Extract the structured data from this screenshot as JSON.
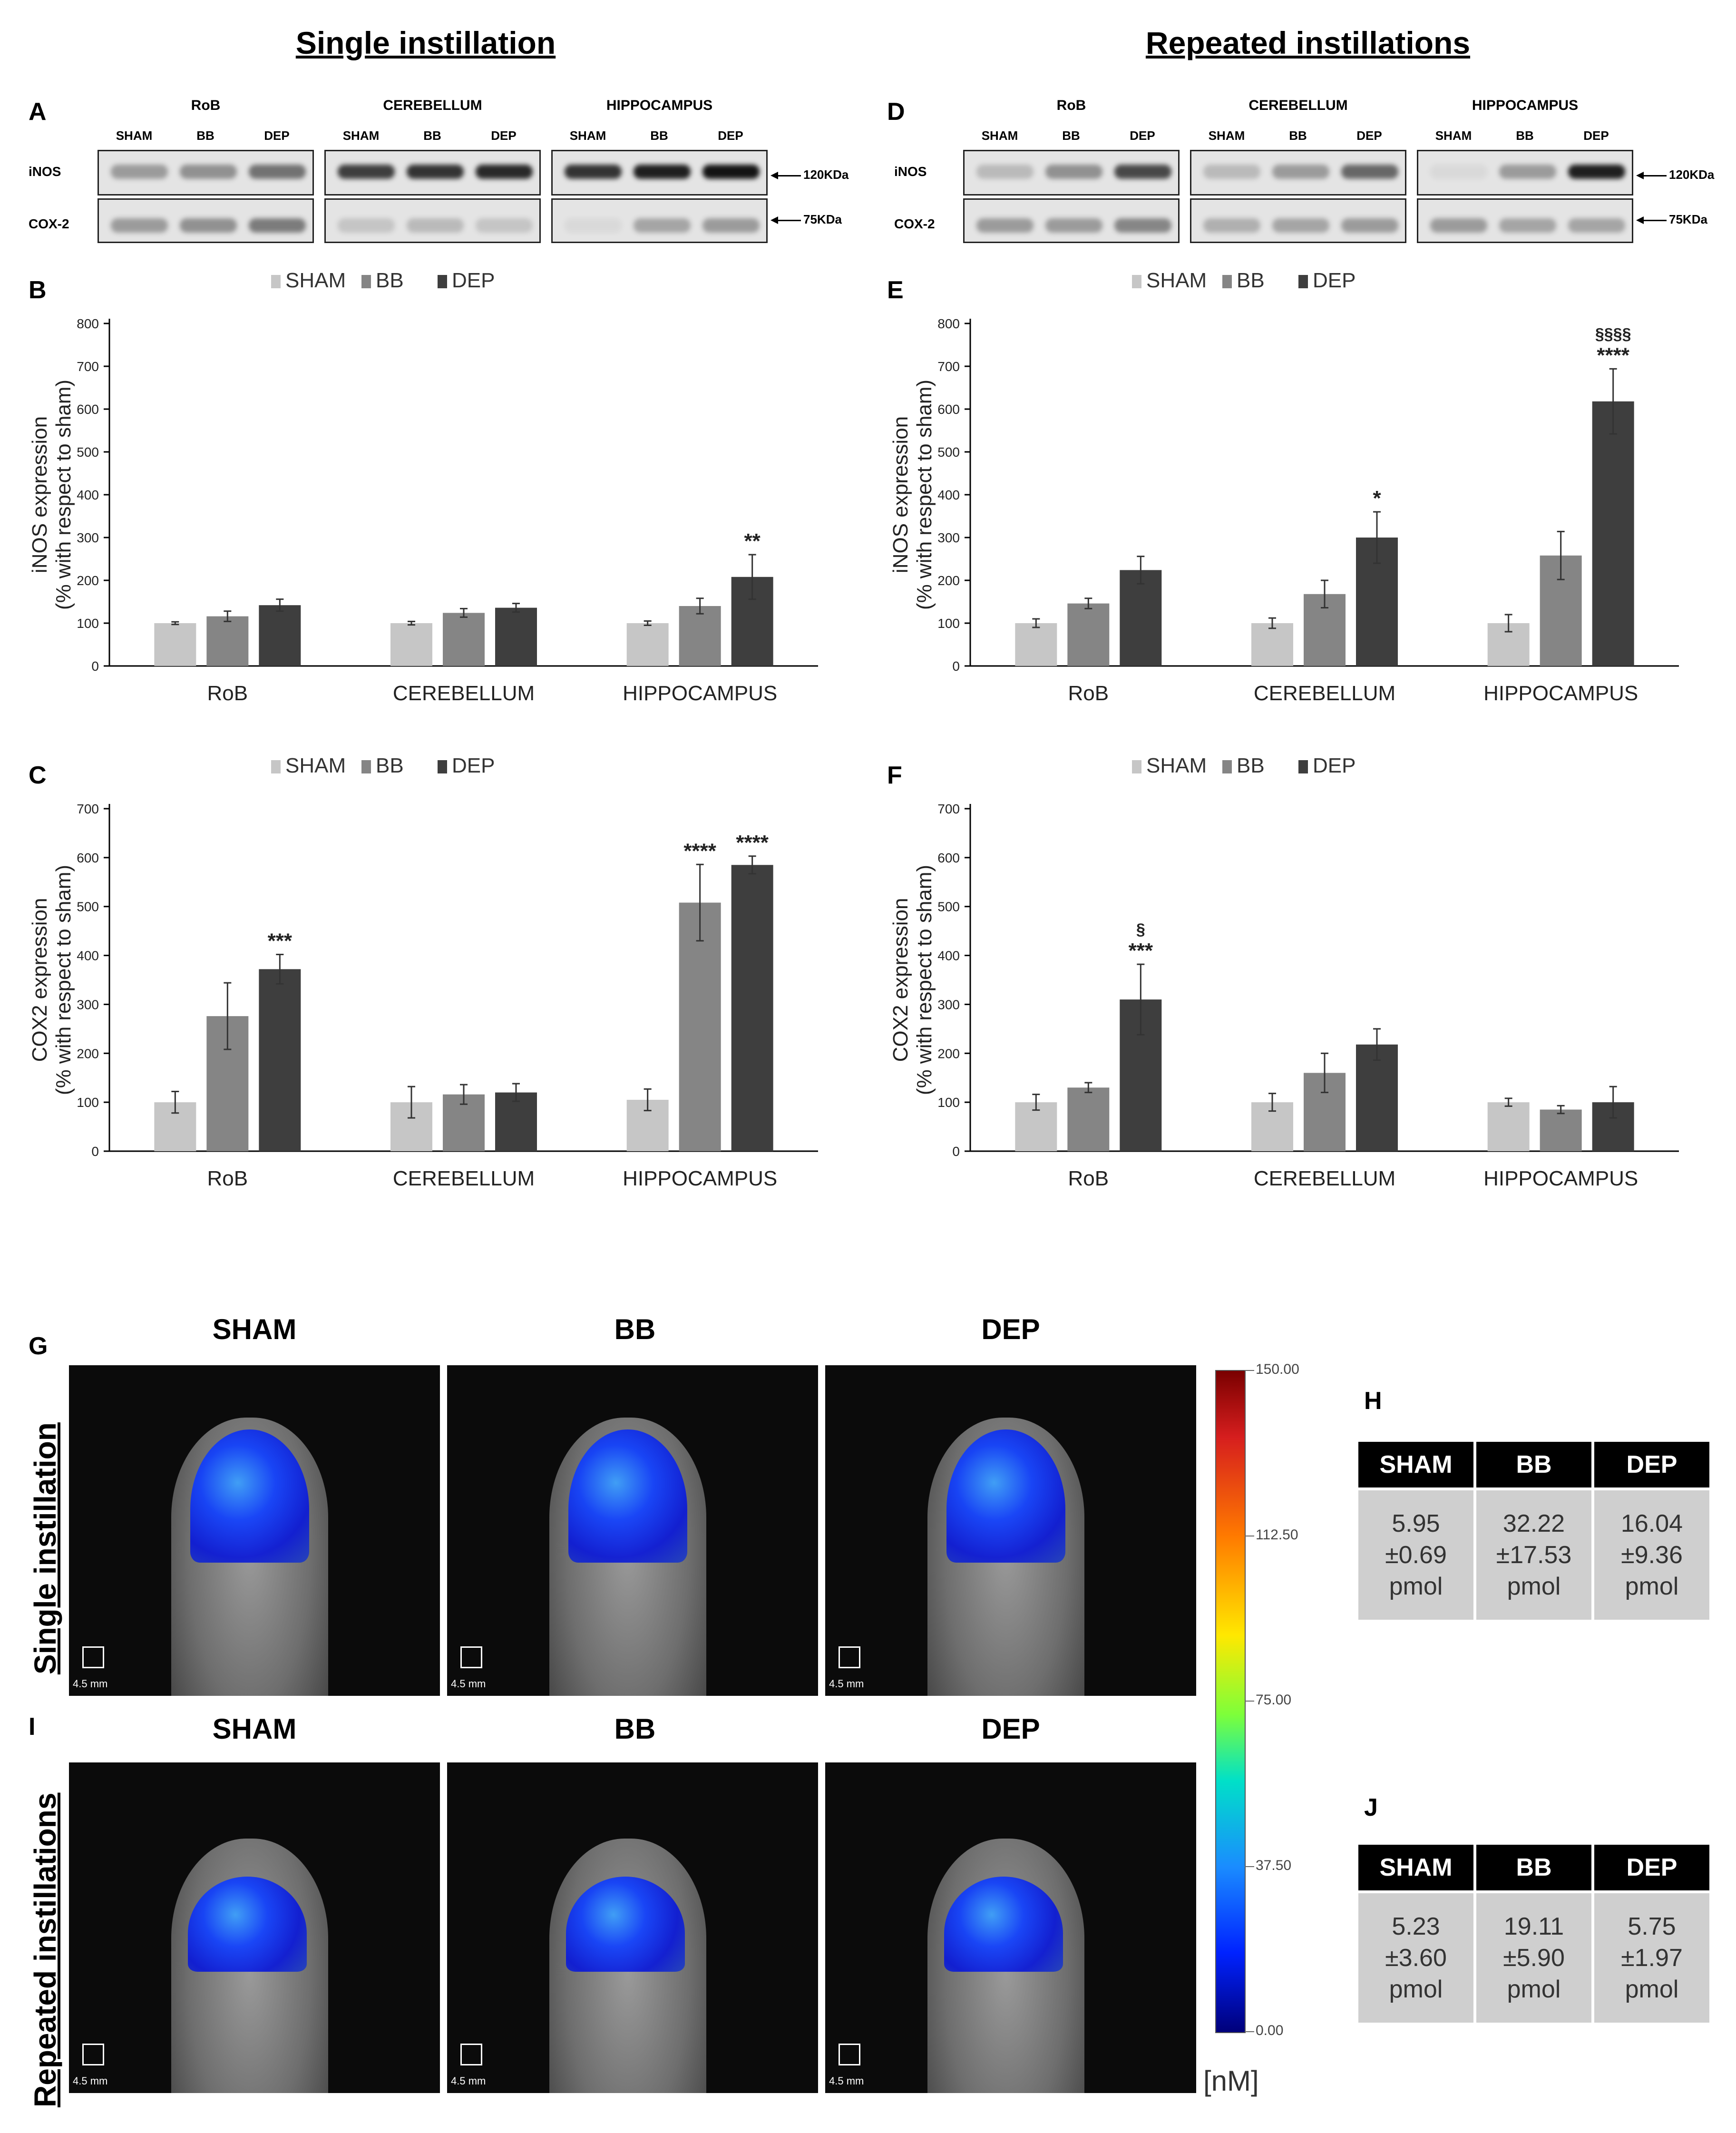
{
  "titles": {
    "single": "Single instillation",
    "repeated": "Repeated instillations"
  },
  "panel_letters": {
    "A": "A",
    "B": "B",
    "C": "C",
    "D": "D",
    "E": "E",
    "F": "F",
    "G": "G",
    "H": "H",
    "I": "I",
    "J": "J"
  },
  "blots": {
    "regions": [
      "RoB",
      "CEREBELLUM",
      "HIPPOCAMPUS"
    ],
    "lanes": [
      "SHAM",
      "BB",
      "DEP"
    ],
    "rows": [
      "iNOS",
      "COX-2"
    ],
    "kda": [
      "120KDa",
      "75KDa"
    ]
  },
  "colors": {
    "sham": "#c6c6c6",
    "bb": "#858585",
    "dep": "#3e3e3e"
  },
  "chart_data": [
    {
      "id": "B",
      "type": "bar",
      "categories": [
        "RoB",
        "CEREBELLUM",
        "HIPPOCAMPUS"
      ],
      "series": [
        {
          "name": "SHAM",
          "values": [
            100,
            100,
            100
          ],
          "errors": [
            3,
            4,
            5
          ]
        },
        {
          "name": "BB",
          "values": [
            116,
            124,
            140
          ],
          "errors": [
            12,
            10,
            18
          ]
        },
        {
          "name": "DEP",
          "values": [
            142,
            136,
            208
          ],
          "errors": [
            14,
            10,
            52
          ]
        }
      ],
      "annotations": [
        [
          "",
          "",
          ""
        ],
        [
          "",
          "",
          ""
        ],
        [
          "",
          "",
          "**"
        ]
      ],
      "ylabel": "iNOS expression",
      "ylabel2": "(% with respect to sham)",
      "ylim": [
        0,
        800
      ],
      "yticks": [
        0,
        100,
        200,
        300,
        400,
        500,
        600,
        700,
        800
      ],
      "legend": [
        "SHAM",
        "BB",
        "DEP"
      ]
    },
    {
      "id": "C",
      "type": "bar",
      "categories": [
        "RoB",
        "CEREBELLUM",
        "HIPPOCAMPUS"
      ],
      "series": [
        {
          "name": "SHAM",
          "values": [
            100,
            100,
            105
          ],
          "errors": [
            22,
            32,
            22
          ]
        },
        {
          "name": "BB",
          "values": [
            276,
            116,
            508
          ],
          "errors": [
            68,
            20,
            78
          ]
        },
        {
          "name": "DEP",
          "values": [
            372,
            120,
            585
          ],
          "errors": [
            30,
            18,
            18
          ]
        }
      ],
      "annotations": [
        [
          "",
          "***"
        ],
        [
          "",
          ""
        ],
        [
          "****",
          "****"
        ]
      ],
      "ylabel": "COX2 expression",
      "ylabel2": "(% with respect to sham)",
      "ylim": [
        0,
        700
      ],
      "yticks": [
        0,
        100,
        200,
        300,
        400,
        500,
        600,
        700
      ],
      "legend": [
        "SHAM",
        "BB",
        "DEP"
      ]
    },
    {
      "id": "E",
      "type": "bar",
      "categories": [
        "RoB",
        "CEREBELLUM",
        "HIPPOCAMPUS"
      ],
      "series": [
        {
          "name": "SHAM",
          "values": [
            100,
            100,
            100
          ],
          "errors": [
            10,
            12,
            20
          ]
        },
        {
          "name": "BB",
          "values": [
            146,
            168,
            258
          ],
          "errors": [
            12,
            32,
            56
          ]
        },
        {
          "name": "DEP",
          "values": [
            224,
            300,
            618
          ],
          "errors": [
            32,
            60,
            76
          ]
        }
      ],
      "annotations": [
        [
          "",
          ""
        ],
        [
          "*",
          ""
        ],
        [
          "****",
          "§§§§"
        ]
      ],
      "ylabel": "iNOS expression",
      "ylabel2": "(% with respect to sham)",
      "ylim": [
        0,
        800
      ],
      "yticks": [
        0,
        100,
        200,
        300,
        400,
        500,
        600,
        700,
        800
      ],
      "legend": [
        "SHAM",
        "BB",
        "DEP"
      ]
    },
    {
      "id": "F",
      "type": "bar",
      "categories": [
        "RoB",
        "CEREBELLUM",
        "HIPPOCAMPUS"
      ],
      "series": [
        {
          "name": "SHAM",
          "values": [
            100,
            100,
            100
          ],
          "errors": [
            16,
            18,
            8
          ]
        },
        {
          "name": "BB",
          "values": [
            130,
            160,
            85
          ],
          "errors": [
            10,
            40,
            8
          ]
        },
        {
          "name": "DEP",
          "values": [
            310,
            218,
            100
          ],
          "errors": [
            72,
            32,
            32
          ]
        }
      ],
      "annotations": [
        [
          "***",
          "§"
        ],
        [
          "",
          ""
        ],
        [
          "",
          ""
        ]
      ],
      "ylabel": "COX2 expression",
      "ylabel2": "(% with respect to sham)",
      "ylim": [
        0,
        700
      ],
      "yticks": [
        0,
        100,
        200,
        300,
        400,
        500,
        600,
        700
      ],
      "legend": [
        "SHAM",
        "BB",
        "DEP"
      ]
    }
  ],
  "imaging": {
    "groups": [
      "SHAM",
      "BB",
      "DEP"
    ],
    "scale_text": "4.5 mm",
    "colorbar": {
      "ticks": [
        "150.00",
        "112.50",
        "75.00",
        "37.50",
        "0.00"
      ],
      "unit": "[nM]"
    }
  },
  "quant_H": {
    "headers": [
      "SHAM",
      "BB",
      "DEP"
    ],
    "values": [
      [
        "5.95",
        "±0.69",
        "pmol"
      ],
      [
        "32.22",
        "±17.53",
        "pmol"
      ],
      [
        "16.04",
        "±9.36",
        "pmol"
      ]
    ]
  },
  "quant_J": {
    "headers": [
      "SHAM",
      "BB",
      "DEP"
    ],
    "values": [
      [
        "5.23",
        "±3.60",
        "pmol"
      ],
      [
        "19.11",
        "±5.90",
        "pmol"
      ],
      [
        "5.75",
        "±1.97",
        "pmol"
      ]
    ]
  }
}
